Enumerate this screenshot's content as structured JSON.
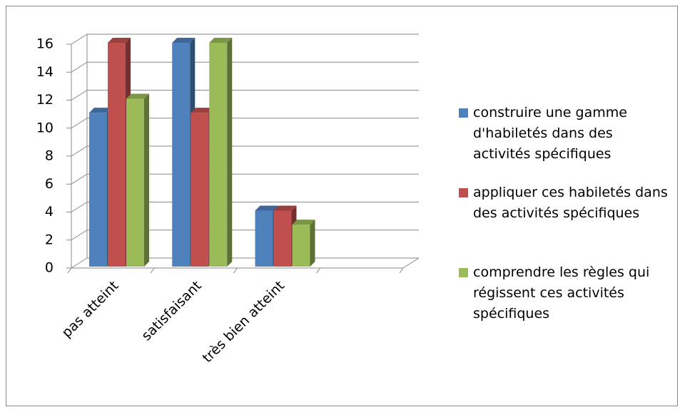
{
  "chart_data": {
    "type": "bar",
    "categories": [
      "pas atteint",
      "satisfaisant",
      "très bien atteint",
      null
    ],
    "series": [
      {
        "name": "construire une gamme d'habiletés dans des activités spécifiques",
        "color": "#4f81bd",
        "values": [
          11,
          16,
          4,
          null
        ]
      },
      {
        "name": "appliquer ces habiletés dans des activités spécifiques",
        "color": "#c0504d",
        "values": [
          16,
          11,
          4,
          null
        ]
      },
      {
        "name": "comprendre les règles qui régissent ces activités spécifiques",
        "color": "#9bbb59",
        "values": [
          12,
          16,
          3,
          null
        ]
      }
    ],
    "ylim": [
      0,
      16
    ],
    "yticks": [
      0,
      2,
      4,
      6,
      8,
      10,
      12,
      14,
      16
    ],
    "grid": true,
    "legend": "right"
  }
}
